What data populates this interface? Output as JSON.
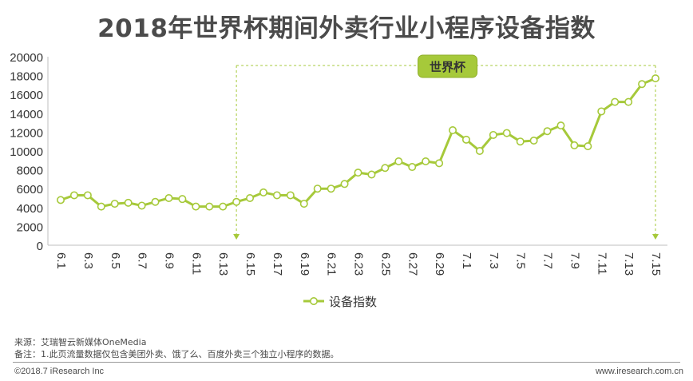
{
  "chart_data": {
    "type": "line",
    "title": "2018年世界杯期间外卖行业小程序设备指数",
    "ylim": [
      0,
      20000
    ],
    "yticks": [
      0,
      2000,
      4000,
      6000,
      8000,
      10000,
      12000,
      14000,
      16000,
      18000,
      20000
    ],
    "x": [
      "6.1",
      "6.2",
      "6.3",
      "6.4",
      "6.5",
      "6.6",
      "6.7",
      "6.8",
      "6.9",
      "6.10",
      "6.11",
      "6.12",
      "6.13",
      "6.14",
      "6.15",
      "6.16",
      "6.17",
      "6.18",
      "6.19",
      "6.20",
      "6.21",
      "6.22",
      "6.23",
      "6.24",
      "6.25",
      "6.26",
      "6.27",
      "6.28",
      "6.29",
      "6.30",
      "7.1",
      "7.2",
      "7.3",
      "7.4",
      "7.5",
      "7.6",
      "7.7",
      "7.8",
      "7.9",
      "7.10",
      "7.11",
      "7.12",
      "7.13",
      "7.14",
      "7.15"
    ],
    "x_tick_labels": [
      "6.1",
      "6.3",
      "6.5",
      "6.7",
      "6.9",
      "6.11",
      "6.13",
      "6.15",
      "6.17",
      "6.19",
      "6.21",
      "6.23",
      "6.25",
      "6.27",
      "6.29",
      "7.1",
      "7.3",
      "7.5",
      "7.7",
      "7.9",
      "7.11",
      "7.13",
      "7.15"
    ],
    "series": [
      {
        "name": "设备指数",
        "values": [
          4800,
          5300,
          5300,
          4100,
          4400,
          4500,
          4200,
          4600,
          5000,
          4900,
          4100,
          4100,
          4100,
          4600,
          5000,
          5600,
          5300,
          5300,
          4400,
          6000,
          6000,
          6500,
          7700,
          7500,
          8200,
          8900,
          8300,
          8900,
          8700,
          12200,
          11200,
          10000,
          11700,
          11900,
          11000,
          11100,
          12100,
          12700,
          10600,
          10500,
          14200,
          15200,
          15200,
          17100,
          17700
        ]
      }
    ],
    "annotation": {
      "label": "世界杯",
      "start": "6.14",
      "end": "7.15"
    },
    "legend": "bottom-center",
    "grid": false,
    "line_color": "#a6c93a"
  },
  "footer": {
    "source": "来源：艾瑞智云新媒体OneMedia",
    "note": "备注：1.此页流量数据仅包含美团外卖、饿了么、百度外卖三个独立小程序的数据。",
    "copyright": "©2018.7 iResearch Inc",
    "website": "www.iresearch.com.cn"
  }
}
